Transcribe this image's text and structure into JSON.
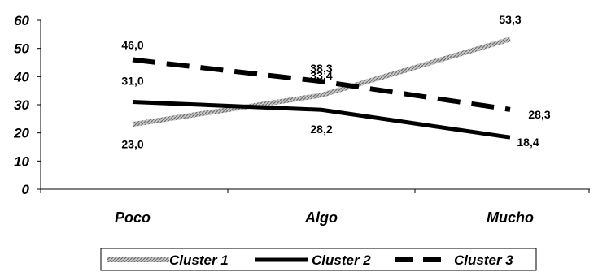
{
  "chart_data": {
    "type": "line",
    "categories": [
      "Poco",
      "Algo",
      "Mucho"
    ],
    "ylim": [
      0,
      60
    ],
    "yticks": [
      "0",
      "10",
      "20",
      "30",
      "40",
      "50",
      "60"
    ],
    "grid": false,
    "legend_position": "bottom",
    "series": [
      {
        "name": "Cluster 1",
        "values": [
          23.0,
          33.4,
          53.3
        ],
        "labels": [
          "23,0",
          "33,4",
          "53,3"
        ],
        "color": "#a6a6a6",
        "style": "hatched"
      },
      {
        "name": "Cluster 2",
        "values": [
          31.0,
          28.2,
          18.4
        ],
        "labels": [
          "31,0",
          "28,2",
          "18,4"
        ],
        "color": "#000000",
        "style": "solid"
      },
      {
        "name": "Cluster 3",
        "values": [
          46.0,
          38.3,
          28.3
        ],
        "labels": [
          "46,0",
          "38,3",
          "28,3"
        ],
        "color": "#000000",
        "style": "dashed"
      }
    ]
  }
}
